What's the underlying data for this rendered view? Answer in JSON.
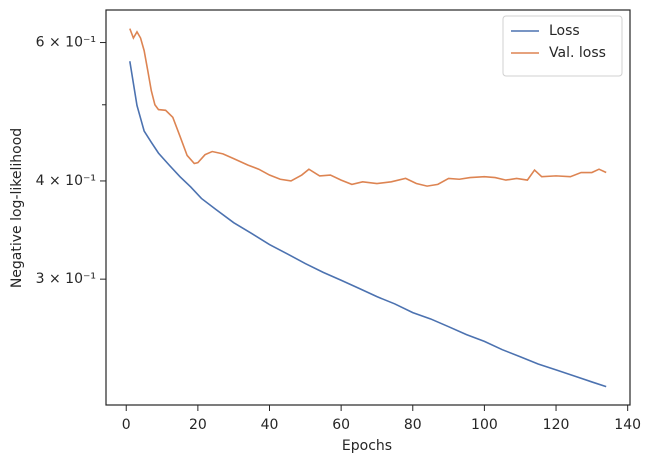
{
  "chart_data": {
    "type": "line",
    "xlabel": "Epochs",
    "ylabel": "Negative log-likelihood",
    "xlim": [
      -5.65,
      140.65
    ],
    "xticks": [
      0,
      20,
      40,
      60,
      80,
      100,
      120,
      140
    ],
    "ylim": [
      0.2075,
      0.66
    ],
    "log_y": true,
    "yticks": [
      {
        "value": 0.3,
        "label": "3 × 10⁻¹"
      },
      {
        "value": 0.4,
        "label": "4 × 10⁻¹"
      },
      {
        "value": 0.6,
        "label": "6 × 10⁻¹"
      }
    ],
    "yminorticks": [
      0.5
    ],
    "legend": "upper right",
    "series": [
      {
        "name": "Loss",
        "color": "#4c72b0",
        "x": [
          1,
          3,
          5,
          7,
          9,
          12,
          15,
          18,
          21,
          25,
          30,
          35,
          40,
          45,
          50,
          55,
          60,
          65,
          70,
          75,
          80,
          85,
          90,
          95,
          100,
          105,
          110,
          115,
          120,
          125,
          130,
          134
        ],
        "values": [
          0.568,
          0.499,
          0.463,
          0.448,
          0.434,
          0.419,
          0.405,
          0.393,
          0.38,
          0.368,
          0.354,
          0.343,
          0.332,
          0.323,
          0.314,
          0.306,
          0.299,
          0.292,
          0.285,
          0.279,
          0.272,
          0.267,
          0.261,
          0.255,
          0.25,
          0.244,
          0.239,
          0.234,
          0.23,
          0.226,
          0.222,
          0.219
        ]
      },
      {
        "name": "Val. loss",
        "color": "#dd8452",
        "x": [
          1,
          2,
          3,
          4,
          5,
          6,
          7,
          8,
          9,
          11,
          13,
          15,
          17,
          19,
          20,
          22,
          24,
          27,
          30,
          34,
          37,
          40,
          43,
          46,
          49,
          51,
          54,
          57,
          60,
          63,
          66,
          70,
          74,
          78,
          81,
          84,
          87,
          90,
          93,
          96,
          100,
          103,
          106,
          109,
          112,
          114,
          116,
          120,
          124,
          127,
          130,
          132,
          134
        ],
        "values": [
          0.625,
          0.608,
          0.619,
          0.608,
          0.586,
          0.553,
          0.521,
          0.5,
          0.493,
          0.492,
          0.482,
          0.456,
          0.431,
          0.421,
          0.422,
          0.432,
          0.436,
          0.433,
          0.427,
          0.419,
          0.414,
          0.407,
          0.402,
          0.4,
          0.407,
          0.414,
          0.406,
          0.407,
          0.401,
          0.396,
          0.399,
          0.397,
          0.399,
          0.403,
          0.397,
          0.394,
          0.396,
          0.403,
          0.402,
          0.404,
          0.405,
          0.404,
          0.401,
          0.403,
          0.401,
          0.413,
          0.405,
          0.406,
          0.405,
          0.41,
          0.41,
          0.414,
          0.41
        ]
      }
    ]
  }
}
